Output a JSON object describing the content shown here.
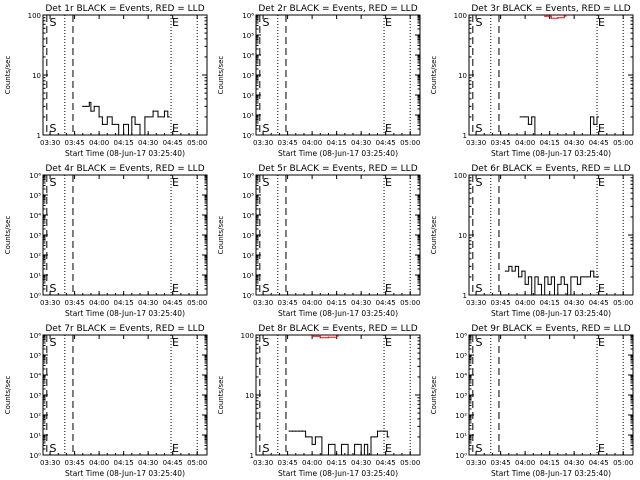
{
  "figure": {
    "xlabel": "Start Time (08-Jun-17 03:25:40)",
    "ylabel": "Counts/sec",
    "x_ticks": [
      "03:30",
      "03:45",
      "04:00",
      "04:15",
      "04:30",
      "04:45",
      "05:00"
    ],
    "marker_s": "S",
    "marker_e": "E"
  },
  "chart_data": [
    {
      "type": "line",
      "title": "Det 1r BLACK = Events, RED = LLD",
      "ylabel": "Counts/sec",
      "xlabel": "Start Time (08-Jun-17 03:25:40)",
      "x_ticks": [
        "03:30",
        "03:45",
        "04:00",
        "04:15",
        "04:30",
        "04:45",
        "05:00"
      ],
      "y_scale": "log",
      "y_ticks": [
        "1",
        "10",
        "100"
      ],
      "ylim": [
        1,
        100
      ],
      "dashed_lines": [
        "03:28",
        "03:44"
      ],
      "dotted_lines": [
        "03:39",
        "04:44",
        "05:00"
      ],
      "markers": [
        {
          "label": "S",
          "x": "03:29"
        },
        {
          "label": "E",
          "x": "04:44"
        }
      ],
      "series": [
        {
          "color": "#000000",
          "x": [
            "03:50",
            "03:52",
            "03:54",
            "03:55",
            "03:57",
            "04:00",
            "04:02",
            "04:05",
            "04:08",
            "04:12",
            "04:15",
            "04:18",
            "04:20",
            "04:22",
            "04:25",
            "04:28",
            "04:30",
            "04:33",
            "04:36",
            "04:40",
            "04:42"
          ],
          "y": [
            3,
            3,
            3.5,
            2.5,
            3,
            2,
            1.5,
            2,
            1.5,
            1,
            1.5,
            1,
            2,
            1.5,
            1,
            2,
            2,
            2.5,
            2,
            2.5,
            2
          ]
        }
      ]
    },
    {
      "type": "line",
      "title": "Det 2r BLACK = Events, RED = LLD",
      "ylabel": "Counts/sec",
      "xlabel": "Start Time (08-Jun-17 03:25:40)",
      "x_ticks": [
        "03:30",
        "03:45",
        "04:00",
        "04:15",
        "04:30",
        "04:45",
        "05:00"
      ],
      "y_scale": "log",
      "y_ticks": [
        "10⁰",
        "10¹",
        "10²",
        "10³",
        "10⁴",
        "10⁵",
        "10⁶"
      ],
      "ylim": [
        1,
        1000000
      ],
      "dashed_lines": [
        "03:28",
        "03:44"
      ],
      "dotted_lines": [
        "03:39",
        "04:44",
        "05:00"
      ],
      "markers": [
        {
          "label": "S",
          "x": "03:29"
        },
        {
          "label": "E",
          "x": "04:44"
        }
      ],
      "series": []
    },
    {
      "type": "line",
      "title": "Det 3r BLACK = Events, RED = LLD",
      "ylabel": "Counts/sec",
      "xlabel": "Start Time (08-Jun-17 03:25:40)",
      "x_ticks": [
        "03:30",
        "03:45",
        "04:00",
        "04:15",
        "04:30",
        "04:45",
        "05:00"
      ],
      "y_scale": "log",
      "y_ticks": [
        "1",
        "10",
        "100"
      ],
      "ylim": [
        1,
        100
      ],
      "dashed_lines": [
        "03:28",
        "03:44"
      ],
      "dotted_lines": [
        "03:39",
        "04:44",
        "05:00"
      ],
      "markers": [
        {
          "label": "S",
          "x": "03:29"
        },
        {
          "label": "E",
          "x": "04:44"
        }
      ],
      "series": [
        {
          "color": "#000000",
          "x": [
            "03:57",
            "04:00",
            "04:02",
            "04:04",
            "04:06",
            "04:40",
            "04:42",
            "04:44"
          ],
          "y": [
            2,
            2,
            1.5,
            2,
            1,
            2,
            1.5,
            2
          ]
        },
        {
          "color": "#ff0000",
          "x": [
            "04:12",
            "04:16",
            "04:20",
            "04:24"
          ],
          "y": [
            95,
            88,
            90,
            96
          ]
        }
      ]
    },
    {
      "type": "line",
      "title": "Det 4r BLACK = Events, RED = LLD",
      "ylabel": "Counts/sec",
      "xlabel": "Start Time (08-Jun-17 03:25:40)",
      "x_ticks": [
        "03:30",
        "03:45",
        "04:00",
        "04:15",
        "04:30",
        "04:45",
        "05:00"
      ],
      "y_scale": "log",
      "y_ticks": [
        "10⁰",
        "10¹",
        "10²",
        "10³",
        "10⁴",
        "10⁵",
        "10⁶"
      ],
      "ylim": [
        1,
        1000000
      ],
      "dashed_lines": [
        "03:28",
        "03:44"
      ],
      "dotted_lines": [
        "03:39",
        "04:44",
        "05:00"
      ],
      "markers": [
        {
          "label": "S",
          "x": "03:29"
        },
        {
          "label": "E",
          "x": "04:44"
        }
      ],
      "series": []
    },
    {
      "type": "line",
      "title": "Det 5r BLACK = Events, RED = LLD",
      "ylabel": "Counts/sec",
      "xlabel": "Start Time (08-Jun-17 03:25:40)",
      "x_ticks": [
        "03:30",
        "03:45",
        "04:00",
        "04:15",
        "04:30",
        "04:45",
        "05:00"
      ],
      "y_scale": "log",
      "y_ticks": [
        "10⁰",
        "10¹",
        "10²",
        "10³",
        "10⁴",
        "10⁵",
        "10⁶"
      ],
      "ylim": [
        1,
        1000000
      ],
      "dashed_lines": [
        "03:28",
        "03:44"
      ],
      "dotted_lines": [
        "03:39",
        "04:44",
        "05:00"
      ],
      "markers": [
        {
          "label": "S",
          "x": "03:29"
        },
        {
          "label": "E",
          "x": "04:44"
        }
      ],
      "series": []
    },
    {
      "type": "line",
      "title": "Det 6r BLACK = Events, RED = LLD",
      "ylabel": "Counts/sec",
      "xlabel": "Start Time (08-Jun-17 03:25:40)",
      "x_ticks": [
        "03:30",
        "03:45",
        "04:00",
        "04:15",
        "04:30",
        "04:45",
        "05:00"
      ],
      "y_scale": "log",
      "y_ticks": [
        "1",
        "10",
        "100"
      ],
      "ylim": [
        1,
        100
      ],
      "dashed_lines": [
        "03:28",
        "03:44"
      ],
      "dotted_lines": [
        "03:39",
        "04:44",
        "05:00"
      ],
      "markers": [
        {
          "label": "S",
          "x": "03:29"
        },
        {
          "label": "E",
          "x": "04:44"
        }
      ],
      "series": [
        {
          "color": "#000000",
          "x": [
            "03:48",
            "03:50",
            "03:52",
            "03:54",
            "03:56",
            "03:58",
            "04:00",
            "04:02",
            "04:04",
            "04:06",
            "04:08",
            "04:10",
            "04:12",
            "04:14",
            "04:16",
            "04:18",
            "04:20",
            "04:22",
            "04:24",
            "04:26",
            "04:28",
            "04:30",
            "04:32",
            "04:34",
            "04:36",
            "04:38",
            "04:40",
            "04:42",
            "04:44"
          ],
          "y": [
            2.5,
            3,
            2.5,
            3,
            2,
            2.5,
            1.5,
            2,
            1,
            2,
            1.5,
            1,
            2,
            1.5,
            2,
            1,
            1.5,
            2,
            1.5,
            1,
            2,
            2,
            1.5,
            2,
            2,
            2,
            2.5,
            2,
            2
          ]
        }
      ]
    },
    {
      "type": "line",
      "title": "Det 7r BLACK = Events, RED = LLD",
      "ylabel": "Counts/sec",
      "xlabel": "Start Time (08-Jun-17 03:25:40)",
      "x_ticks": [
        "03:30",
        "03:45",
        "04:00",
        "04:15",
        "04:30",
        "04:45",
        "05:00"
      ],
      "y_scale": "log",
      "y_ticks": [
        "10⁰",
        "10¹",
        "10²",
        "10³",
        "10⁴",
        "10⁵",
        "10⁶"
      ],
      "ylim": [
        1,
        1000000
      ],
      "dashed_lines": [
        "03:28",
        "03:44"
      ],
      "dotted_lines": [
        "03:39",
        "04:44",
        "05:00"
      ],
      "markers": [
        {
          "label": "S",
          "x": "03:29"
        },
        {
          "label": "E",
          "x": "04:44"
        }
      ],
      "series": []
    },
    {
      "type": "line",
      "title": "Det 8r BLACK = Events, RED = LLD",
      "ylabel": "Counts/sec",
      "xlabel": "Start Time (08-Jun-17 03:25:40)",
      "x_ticks": [
        "03:30",
        "03:45",
        "04:00",
        "04:15",
        "04:30",
        "04:45",
        "05:00"
      ],
      "y_scale": "log",
      "y_ticks": [
        "1",
        "10",
        "100"
      ],
      "ylim": [
        1,
        100
      ],
      "dashed_lines": [
        "03:28",
        "03:44"
      ],
      "dotted_lines": [
        "03:39",
        "04:44",
        "05:00"
      ],
      "markers": [
        {
          "label": "S",
          "x": "03:29"
        },
        {
          "label": "E",
          "x": "04:44"
        }
      ],
      "series": [
        {
          "color": "#000000",
          "x": [
            "03:46",
            "03:48",
            "03:50",
            "03:52",
            "03:54",
            "03:56",
            "03:58",
            "04:00",
            "04:02",
            "04:06",
            "04:10",
            "04:14",
            "04:18",
            "04:22",
            "04:26",
            "04:28",
            "04:30",
            "04:32",
            "04:34",
            "04:36",
            "04:38",
            "04:40",
            "04:42",
            "04:44",
            "04:46"
          ],
          "y": [
            2.5,
            2.5,
            2.5,
            2.5,
            2.5,
            2,
            2,
            1.5,
            2,
            1,
            1.5,
            1,
            1.5,
            1,
            1.5,
            1.5,
            1,
            1.5,
            1,
            2,
            2,
            2.5,
            2.5,
            2.5,
            2
          ]
        },
        {
          "color": "#ff0000",
          "x": [
            "04:00",
            "04:05",
            "04:10",
            "04:15"
          ],
          "y": [
            95,
            90,
            92,
            96
          ]
        }
      ]
    },
    {
      "type": "line",
      "title": "Det 9r BLACK = Events, RED = LLD",
      "ylabel": "Counts/sec",
      "xlabel": "Start Time (08-Jun-17 03:25:40)",
      "x_ticks": [
        "03:30",
        "03:45",
        "04:00",
        "04:15",
        "04:30",
        "04:45",
        "05:00"
      ],
      "y_scale": "log",
      "y_ticks": [
        "10⁰",
        "10¹",
        "10²",
        "10³",
        "10⁴",
        "10⁵",
        "10⁶"
      ],
      "ylim": [
        1,
        1000000
      ],
      "dashed_lines": [
        "03:28",
        "03:44"
      ],
      "dotted_lines": [
        "03:39",
        "04:44",
        "05:00"
      ],
      "markers": [
        {
          "label": "S",
          "x": "03:29"
        },
        {
          "label": "E",
          "x": "04:44"
        }
      ],
      "series": []
    }
  ]
}
